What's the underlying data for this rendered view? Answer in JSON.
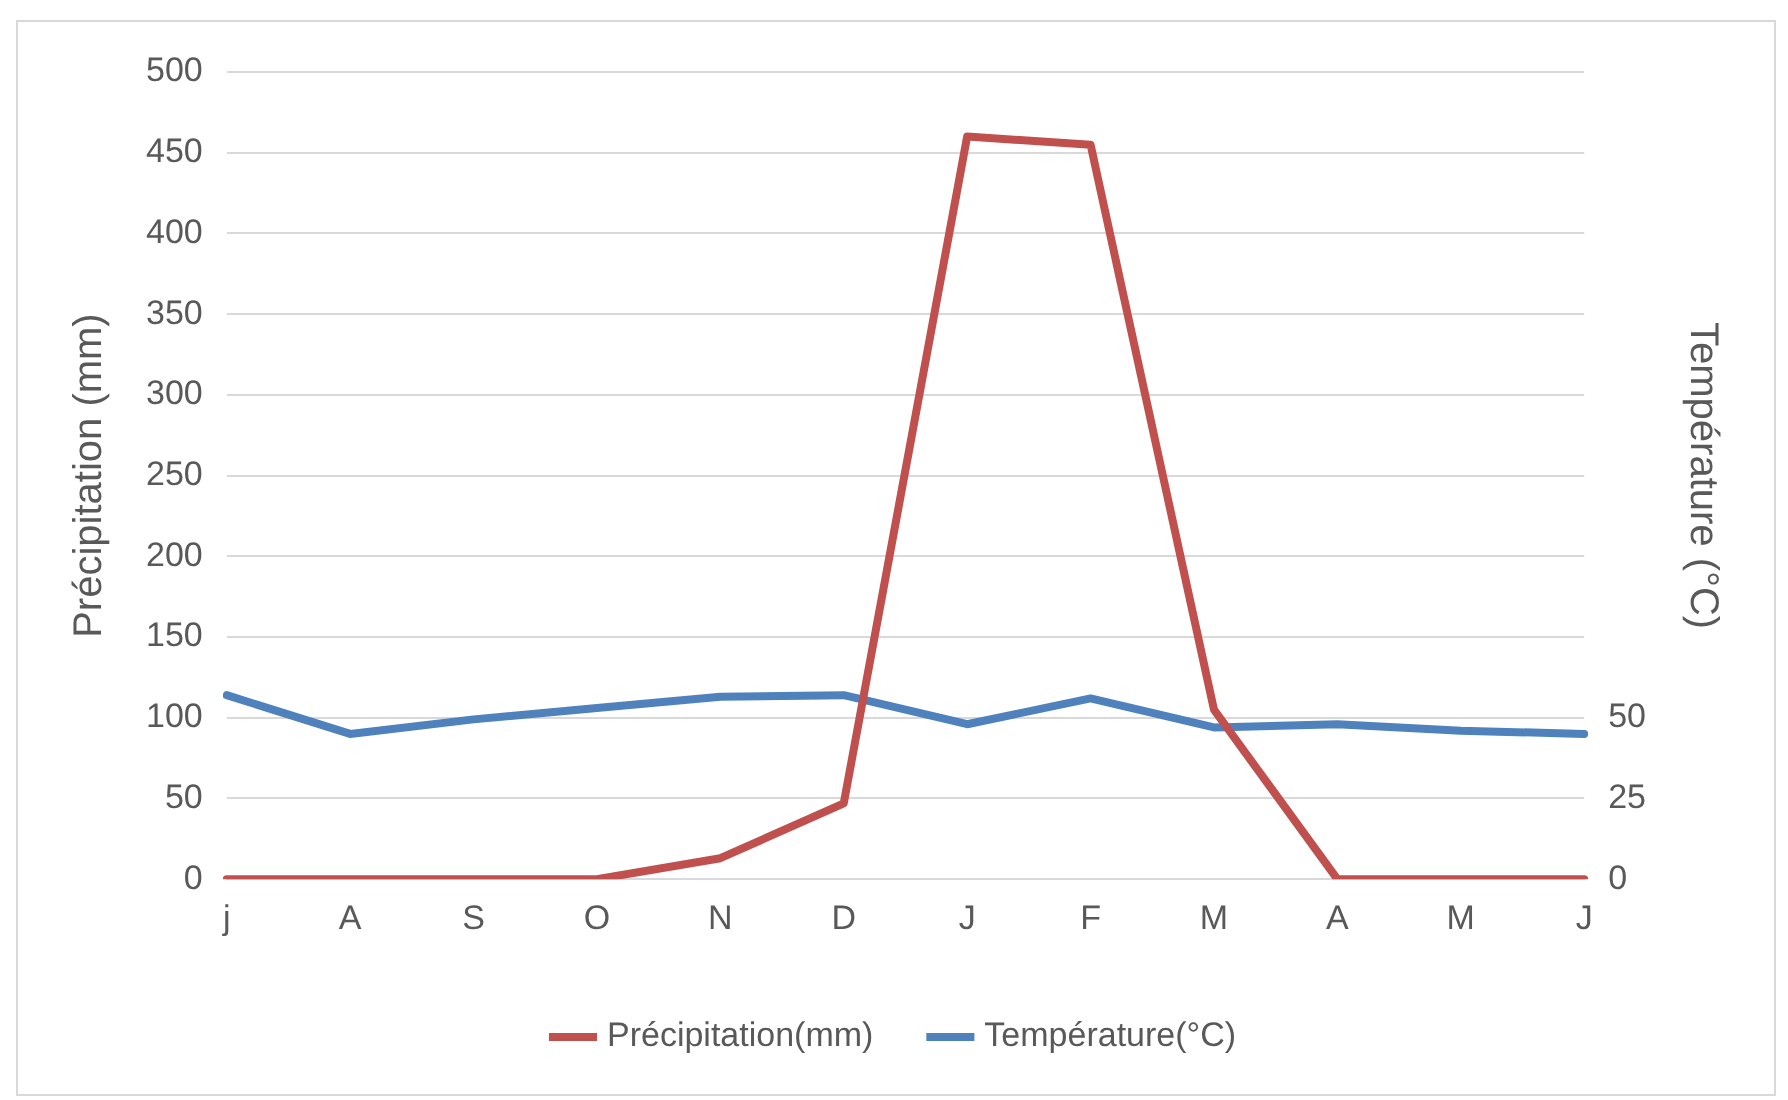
{
  "chart_data": {
    "type": "line",
    "categories": [
      "j",
      "A",
      "S",
      "O",
      "N",
      "D",
      "J",
      "F",
      "M",
      "A",
      "M",
      "J"
    ],
    "ylabel": "Précipitation (mm)",
    "y2label": "Température (°C)",
    "ylim": [
      0,
      500
    ],
    "yticks": [
      0,
      50,
      100,
      150,
      200,
      250,
      300,
      350,
      400,
      450,
      500
    ],
    "y2lim": [
      0,
      250
    ],
    "y2ticks": [
      0,
      25,
      50
    ],
    "series": [
      {
        "name": "Précipitation(mm)",
        "color": "#c0504d",
        "values": [
          0,
          0,
          0,
          0,
          13,
          47,
          460,
          455,
          105,
          0,
          0,
          0
        ]
      },
      {
        "name": "Température(°C)",
        "color": "#4f81bd",
        "axis": "y2",
        "values": [
          57,
          45,
          49.5,
          53,
          56.5,
          57,
          48,
          56,
          47,
          48,
          46,
          45
        ]
      }
    ],
    "grid": "y",
    "legend": "bottom",
    "marker": "none",
    "line_style": "solid"
  }
}
